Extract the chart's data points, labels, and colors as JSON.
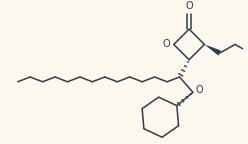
{
  "background_color": "#fdf8ee",
  "line_color": "#2d3d52",
  "lw": 1.1,
  "figsize": [
    2.48,
    1.44
  ],
  "dpi": 100,
  "xlim": [
    0,
    248
  ],
  "ylim": [
    0,
    144
  ]
}
